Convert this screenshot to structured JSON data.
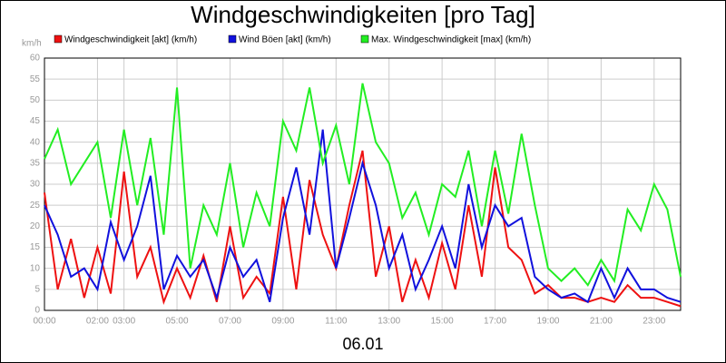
{
  "chart_data": {
    "type": "line",
    "title": "Windgeschwindigkeiten [pro Tag]",
    "y_unit": "km/h",
    "x_label": "06.01",
    "x": [
      0,
      0.5,
      1,
      1.5,
      2,
      2.5,
      3,
      3.5,
      4,
      4.5,
      5,
      5.5,
      6,
      6.5,
      7,
      7.5,
      8,
      8.5,
      9,
      9.5,
      10,
      10.5,
      11,
      11.5,
      12,
      12.5,
      13,
      13.5,
      14,
      14.5,
      15,
      15.5,
      16,
      16.5,
      17,
      17.5,
      18,
      18.5,
      19,
      19.5,
      20,
      20.5,
      21,
      21.5,
      22,
      22.5,
      23,
      23.5,
      24
    ],
    "series": [
      {
        "name": "Windgeschwindigkeit [akt] (km/h)",
        "color": "#ee1111",
        "values": [
          28,
          5,
          17,
          3,
          15,
          4,
          33,
          8,
          15,
          2,
          10,
          3,
          13,
          2,
          20,
          3,
          8,
          4,
          27,
          5,
          31,
          18,
          10,
          25,
          38,
          8,
          20,
          2,
          12,
          3,
          16,
          5,
          25,
          8,
          34,
          15,
          12,
          4,
          6,
          3,
          3,
          2,
          3,
          2,
          6,
          3,
          3,
          2,
          1
        ]
      },
      {
        "name": "Wind Böen [akt] (km/h)",
        "color": "#1111dd",
        "values": [
          25,
          18,
          8,
          10,
          5,
          21,
          12,
          20,
          32,
          5,
          13,
          8,
          12,
          3,
          15,
          8,
          12,
          2,
          22,
          34,
          18,
          43,
          10,
          22,
          35,
          25,
          10,
          18,
          5,
          12,
          20,
          10,
          30,
          15,
          25,
          20,
          22,
          8,
          5,
          3,
          4,
          2,
          10,
          3,
          10,
          5,
          5,
          3,
          2
        ]
      },
      {
        "name": "Max. Windgeschwindigkeit [max] (km/h)",
        "color": "#22ee22",
        "values": [
          36,
          43,
          30,
          35,
          40,
          22,
          43,
          25,
          41,
          18,
          53,
          10,
          25,
          18,
          35,
          15,
          28,
          20,
          45,
          38,
          53,
          35,
          44,
          30,
          54,
          40,
          35,
          22,
          28,
          18,
          30,
          27,
          38,
          20,
          38,
          23,
          42,
          25,
          10,
          7,
          10,
          6,
          12,
          7,
          24,
          19,
          30,
          24,
          8
        ]
      }
    ],
    "xlim": [
      0,
      24
    ],
    "ylim": [
      0,
      60
    ],
    "yticks": [
      0,
      5,
      10,
      15,
      20,
      25,
      30,
      35,
      40,
      45,
      50,
      55,
      60
    ],
    "xticks": [
      {
        "value": 0,
        "label": "00:00"
      },
      {
        "value": 2,
        "label": "02:00"
      },
      {
        "value": 3,
        "label": "03:00"
      },
      {
        "value": 5,
        "label": "05:00"
      },
      {
        "value": 7,
        "label": "07:00"
      },
      {
        "value": 9,
        "label": "09:00"
      },
      {
        "value": 11,
        "label": "11:00"
      },
      {
        "value": 13,
        "label": "13:00"
      },
      {
        "value": 15,
        "label": "15:00"
      },
      {
        "value": 17,
        "label": "17:00"
      },
      {
        "value": 19,
        "label": "19:00"
      },
      {
        "value": 21,
        "label": "21:00"
      },
      {
        "value": 23,
        "label": "23:00"
      }
    ],
    "grid": true
  }
}
